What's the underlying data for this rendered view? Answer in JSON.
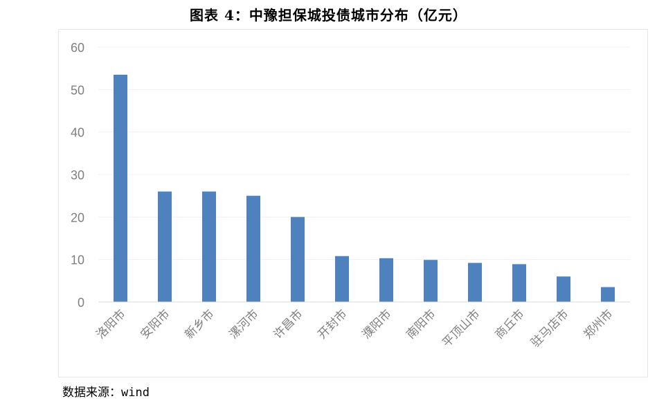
{
  "chart_data": {
    "type": "bar",
    "title": "图表 4：中豫担保城投债城市分布（亿元）",
    "categories": [
      "洛阳市",
      "安阳市",
      "新乡市",
      "漯河市",
      "许昌市",
      "开封市",
      "濮阳市",
      "南阳市",
      "平顶山市",
      "商丘市",
      "驻马店市",
      "郑州市"
    ],
    "values": [
      53.5,
      26,
      26,
      25,
      20,
      10.8,
      10.3,
      9.9,
      9.2,
      8.9,
      6,
      3.5
    ],
    "ylim": [
      0,
      60
    ],
    "yticks": [
      0,
      10,
      20,
      30,
      40,
      50,
      60
    ],
    "xlabel": "",
    "ylabel": "",
    "grid": true,
    "bar_color": "#4f81bd",
    "gridline_color": "#f0f0f0",
    "tick_label_color": "#7f7f7f"
  },
  "source": "数据来源：wind"
}
